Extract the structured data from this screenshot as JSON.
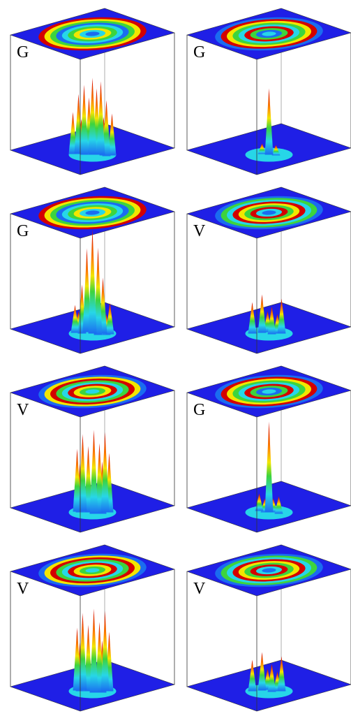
{
  "panels": [
    {
      "label": "G"
    },
    {
      "label": "G"
    },
    {
      "label": "G"
    },
    {
      "label": "V"
    },
    {
      "label": "V"
    },
    {
      "label": "G"
    },
    {
      "label": "V"
    },
    {
      "label": "V"
    }
  ]
}
